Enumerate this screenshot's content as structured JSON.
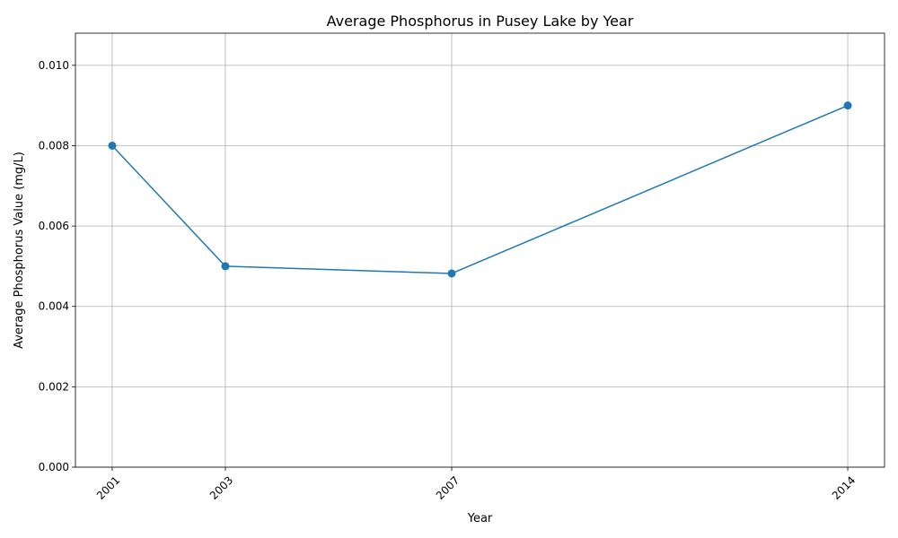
{
  "chart_data": {
    "type": "line",
    "title": "Average Phosphorus in Pusey Lake by Year",
    "xlabel": "Year",
    "ylabel": "Average Phosphorus Value (mg/L)",
    "x": [
      2001,
      2003,
      2007,
      2014
    ],
    "x_tick_labels": [
      "2001",
      "2003",
      "2007",
      "2014"
    ],
    "series": [
      {
        "values": [
          0.008,
          0.005,
          0.00482,
          0.009
        ]
      }
    ],
    "xlim": [
      2000.35,
      2014.65
    ],
    "ylim": [
      0,
      0.0108
    ],
    "y_ticks": [
      0,
      0.002,
      0.004,
      0.006,
      0.008,
      0.01
    ],
    "y_tick_labels": [
      "0.000",
      "0.002",
      "0.004",
      "0.006",
      "0.008",
      "0.010"
    ],
    "grid": true,
    "marker": "circle",
    "line_color": "#1f77b4"
  }
}
